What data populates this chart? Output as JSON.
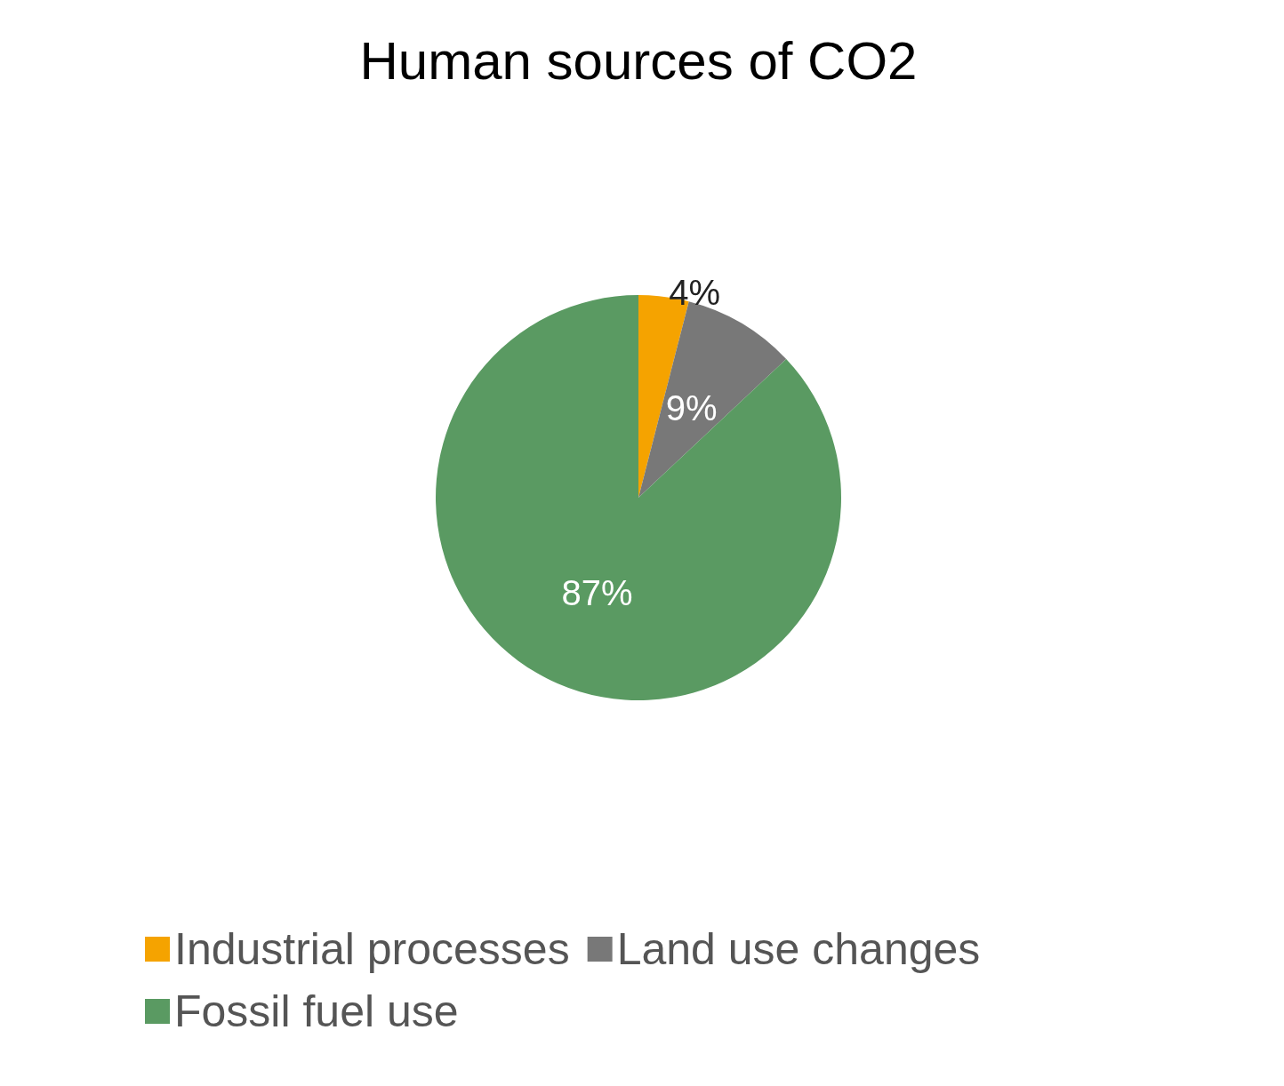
{
  "chart_data": {
    "type": "pie",
    "title": "Human sources of CO2",
    "categories": [
      "Industrial processes",
      "Land use changes",
      "Fossil fuel use"
    ],
    "values": [
      4,
      9,
      87
    ],
    "colors": [
      "#f5a300",
      "#787878",
      "#5a9a62"
    ],
    "value_labels": [
      "4%",
      "9%",
      "87%"
    ],
    "legend": "bottom"
  }
}
